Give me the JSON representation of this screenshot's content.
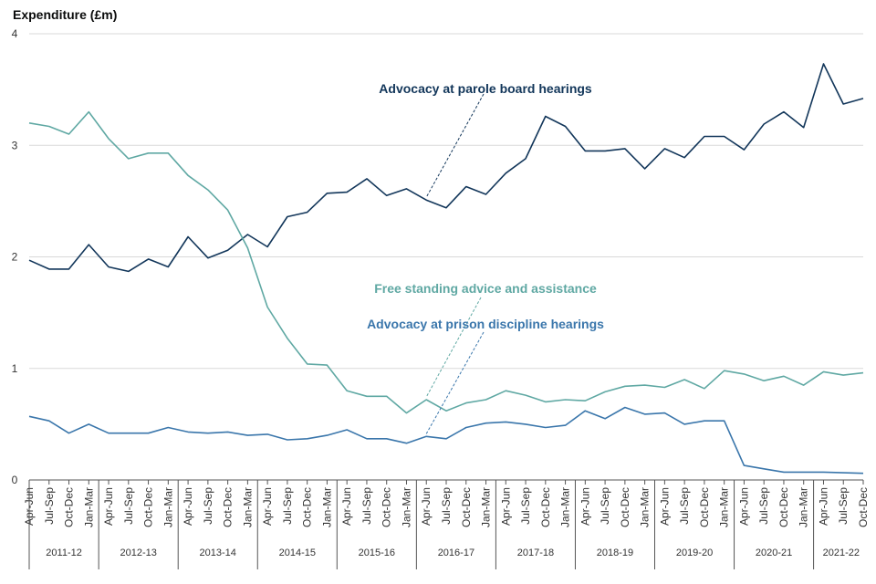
{
  "chart_data": {
    "type": "line",
    "ylabel": "Expenditure (£m)",
    "ylim": [
      0,
      4
    ],
    "yticks": [
      "0",
      "1",
      "2",
      "3",
      "4"
    ],
    "grid": true,
    "legend": "inline annotations",
    "categories": [
      "Apr-Jun",
      "Jul-Sep",
      "Oct-Dec",
      "Jan-Mar",
      "Apr-Jun",
      "Jul-Sep",
      "Oct-Dec",
      "Jan-Mar",
      "Apr-Jun",
      "Jul-Sep",
      "Oct-Dec",
      "Jan-Mar",
      "Apr-Jun",
      "Jul-Sep",
      "Oct-Dec",
      "Jan-Mar",
      "Apr-Jun",
      "Jul-Sep",
      "Oct-Dec",
      "Jan-Mar",
      "Apr-Jun",
      "Jul-Sep",
      "Oct-Dec",
      "Jan-Mar",
      "Apr-Jun",
      "Jul-Sep",
      "Oct-Dec",
      "Jan-Mar",
      "Apr-Jun",
      "Jul-Sep",
      "Oct-Dec",
      "Jan-Mar",
      "Apr-Jun",
      "Jul-Sep",
      "Oct-Dec",
      "Jan-Mar",
      "Apr-Jun",
      "Jul-Sep",
      "Oct-Dec",
      "Jan-Mar",
      "Apr-Jun",
      "Jul-Sep",
      "Oct-Dec"
    ],
    "years": [
      "2011-12",
      "2012-13",
      "2013-14",
      "2014-15",
      "2015-16",
      "2016-17",
      "2017-18",
      "2018-19",
      "2019-20",
      "2020-21",
      "2021-22"
    ],
    "series": [
      {
        "name": "Advocacy at parole board hearings",
        "color": "#12365a",
        "values": [
          1.97,
          1.89,
          1.89,
          2.11,
          1.91,
          1.87,
          1.98,
          1.91,
          2.18,
          1.99,
          2.06,
          2.2,
          2.09,
          2.36,
          2.4,
          2.57,
          2.58,
          2.7,
          2.55,
          2.61,
          2.51,
          2.44,
          2.63,
          2.56,
          2.75,
          2.88,
          3.26,
          3.17,
          2.95,
          2.95,
          2.97,
          2.79,
          2.97,
          2.89,
          3.08,
          3.08,
          2.96,
          3.19,
          3.3,
          3.16,
          3.73,
          3.37,
          3.42
        ]
      },
      {
        "name": "Free standing advice and assistance",
        "color": "#5fa8a3",
        "values": [
          3.2,
          3.17,
          3.1,
          3.3,
          3.06,
          2.88,
          2.93,
          2.93,
          2.73,
          2.6,
          2.42,
          2.08,
          1.55,
          1.27,
          1.04,
          1.03,
          0.8,
          0.75,
          0.75,
          0.6,
          0.72,
          0.62,
          0.69,
          0.72,
          0.8,
          0.76,
          0.7,
          0.72,
          0.71,
          0.79,
          0.84,
          0.85,
          0.83,
          0.9,
          0.82,
          0.98,
          0.95,
          0.89,
          0.93,
          0.85,
          0.97,
          0.94,
          0.96
        ]
      },
      {
        "name": "Advocacy at prison discipline hearings",
        "color": "#3a76ab",
        "values": [
          0.57,
          0.53,
          0.42,
          0.5,
          0.42,
          0.42,
          0.42,
          0.47,
          0.43,
          0.42,
          0.43,
          0.4,
          0.41,
          0.36,
          0.37,
          0.4,
          0.45,
          0.37,
          0.37,
          0.33,
          0.39,
          0.37,
          0.47,
          0.51,
          0.52,
          0.5,
          0.47,
          0.49,
          0.62,
          0.55,
          0.65,
          0.59,
          0.6,
          0.5,
          0.53,
          0.53,
          0.13,
          0.1,
          0.07,
          0.07,
          0.07,
          0.065,
          0.06
        ]
      }
    ],
    "annotations": [
      {
        "text": "Advocacy at parole board hearings",
        "color": "#12365a",
        "series": 0,
        "point": 20
      },
      {
        "text": "Free standing advice and assistance",
        "color": "#5fa8a3",
        "series": 1,
        "point": 20
      },
      {
        "text": "Advocacy at prison discipline hearings",
        "color": "#3a76ab",
        "series": 2,
        "point": 20
      }
    ]
  }
}
